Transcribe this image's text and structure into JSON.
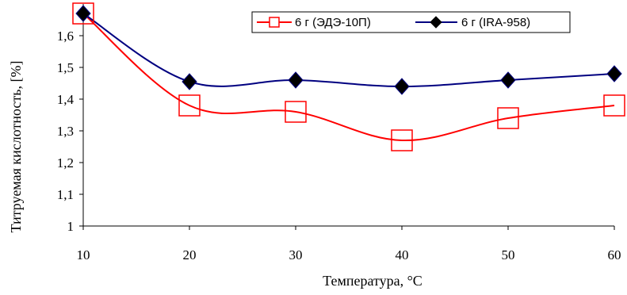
{
  "chart_data": {
    "type": "line",
    "x": [
      10,
      20,
      30,
      40,
      50,
      60
    ],
    "xlim": [
      10,
      60
    ],
    "ylim": [
      1,
      1.7
    ],
    "xticks": [
      "10",
      "20",
      "30",
      "40",
      "50",
      "60"
    ],
    "yticks": [
      "1",
      "1,1",
      "1,2",
      "1,3",
      "1,4",
      "1,5",
      "1,6"
    ],
    "xlabel": "Температура, °C",
    "ylabel": "Титруемая кислотность,  [%]",
    "grid": false,
    "legend": "top-right",
    "series": [
      {
        "name": "6 г (ЭДЭ-10П)",
        "values": [
          1.67,
          1.38,
          1.36,
          1.27,
          1.34,
          1.38
        ],
        "color": "#ff0000",
        "marker": "square-open"
      },
      {
        "name": "6 г (IRA-958)",
        "values": [
          1.67,
          1.455,
          1.46,
          1.44,
          1.46,
          1.48
        ],
        "color": "#000080",
        "marker": "diamond-filled"
      }
    ]
  }
}
